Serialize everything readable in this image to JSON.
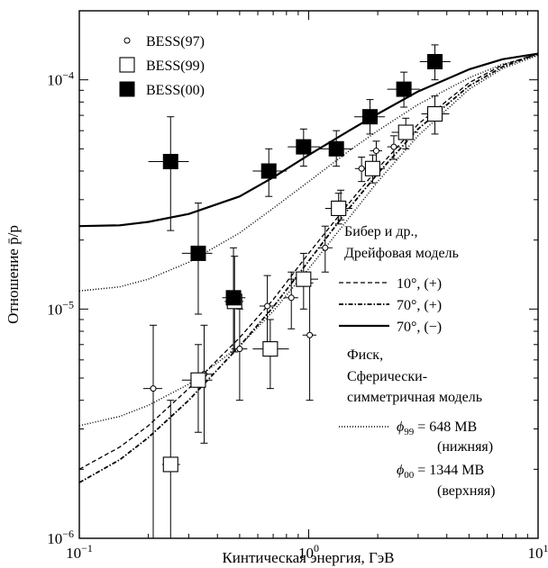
{
  "chart_data": {
    "type": "scatter",
    "title": "",
    "xlabel": "Кинтическая энергия, ГэВ",
    "ylabel": "Отношение p̄/p",
    "x_scale": "log",
    "y_scale": "log",
    "xlim": [
      0.1,
      10
    ],
    "ylim": [
      1e-06,
      0.0002
    ],
    "grid": false,
    "x_ticks": [
      {
        "value": 0.1,
        "base": "10",
        "exp": "−1"
      },
      {
        "value": 1,
        "base": "10",
        "exp": "0"
      },
      {
        "value": 10,
        "base": "10",
        "exp": "1"
      }
    ],
    "y_ticks": [
      {
        "value": 1e-06,
        "base": "10",
        "exp": "−6"
      },
      {
        "value": 1e-05,
        "base": "10",
        "exp": "−5"
      },
      {
        "value": 0.0001,
        "base": "10",
        "exp": "−4"
      }
    ],
    "series": [
      {
        "name": "BESS(97)",
        "marker": "open-circle",
        "points": [
          {
            "x": 0.21,
            "y": 4.5e-06,
            "xlo": 0.19,
            "xhi": 0.23,
            "ylo": 1e-06,
            "yhi": 8.5e-06
          },
          {
            "x": 0.35,
            "y": 5.2e-06,
            "xlo": 0.32,
            "xhi": 0.38,
            "ylo": 2.6e-06,
            "yhi": 8.5e-06
          },
          {
            "x": 0.5,
            "y": 6.7e-06,
            "xlo": 0.46,
            "xhi": 0.54,
            "ylo": 4e-06,
            "yhi": 1e-05
          },
          {
            "x": 0.66,
            "y": 1.03e-05,
            "xlo": 0.61,
            "xhi": 0.71,
            "ylo": 7.2e-06,
            "yhi": 1.4e-05
          },
          {
            "x": 0.84,
            "y": 1.12e-05,
            "xlo": 0.78,
            "xhi": 0.9,
            "ylo": 8.2e-06,
            "yhi": 1.45e-05
          },
          {
            "x": 1.01,
            "y": 7.7e-06,
            "xlo": 0.94,
            "xhi": 1.08,
            "ylo": 4e-06,
            "yhi": 1.3e-05
          },
          {
            "x": 1.18,
            "y": 1.85e-05,
            "xlo": 1.1,
            "xhi": 1.27,
            "ylo": 1.45e-05,
            "yhi": 2.3e-05
          },
          {
            "x": 1.38,
            "y": 2.85e-05,
            "xlo": 1.28,
            "xhi": 1.48,
            "ylo": 2.45e-05,
            "yhi": 3.3e-05
          },
          {
            "x": 1.7,
            "y": 4.1e-05,
            "xlo": 1.59,
            "xhi": 1.81,
            "ylo": 3.6e-05,
            "yhi": 4.6e-05
          },
          {
            "x": 1.97,
            "y": 4.9e-05,
            "xlo": 1.85,
            "xhi": 2.09,
            "ylo": 4.4e-05,
            "yhi": 5.4e-05
          },
          {
            "x": 2.35,
            "y": 5.1e-05,
            "xlo": 2.2,
            "xhi": 2.5,
            "ylo": 4.5e-05,
            "yhi": 5.7e-05
          }
        ]
      },
      {
        "name": "BESS(99)",
        "marker": "open-square",
        "points": [
          {
            "x": 0.25,
            "y": 2.1e-06,
            "xlo": 0.23,
            "xhi": 0.275,
            "ylo": 1e-06,
            "yhi": 4e-06
          },
          {
            "x": 0.33,
            "y": 4.9e-06,
            "xlo": 0.28,
            "xhi": 0.38,
            "ylo": 2.9e-06,
            "yhi": 7e-06
          },
          {
            "x": 0.475,
            "y": 1.08e-05,
            "xlo": 0.43,
            "xhi": 0.52,
            "ylo": 6.5e-06,
            "yhi": 1.7e-05
          },
          {
            "x": 0.68,
            "y": 6.7e-06,
            "xlo": 0.57,
            "xhi": 0.82,
            "ylo": 4.5e-06,
            "yhi": 9e-06
          },
          {
            "x": 0.95,
            "y": 1.35e-05,
            "xlo": 0.82,
            "xhi": 1.1,
            "ylo": 1e-05,
            "yhi": 1.75e-05
          },
          {
            "x": 1.35,
            "y": 2.75e-05,
            "xlo": 1.18,
            "xhi": 1.55,
            "ylo": 2.35e-05,
            "yhi": 3.2e-05
          },
          {
            "x": 1.9,
            "y": 4.1e-05,
            "xlo": 1.68,
            "xhi": 2.15,
            "ylo": 3.55e-05,
            "yhi": 4.7e-05
          },
          {
            "x": 2.65,
            "y": 5.9e-05,
            "xlo": 2.3,
            "xhi": 3.0,
            "ylo": 5e-05,
            "yhi": 6.8e-05
          },
          {
            "x": 3.55,
            "y": 7.1e-05,
            "xlo": 3.1,
            "xhi": 4.1,
            "ylo": 5.8e-05,
            "yhi": 8.5e-05
          }
        ]
      },
      {
        "name": "BESS(00)",
        "marker": "filled-square",
        "points": [
          {
            "x": 0.25,
            "y": 4.4e-05,
            "xlo": 0.2,
            "xhi": 0.3,
            "ylo": 2.2e-05,
            "yhi": 6.9e-05
          },
          {
            "x": 0.33,
            "y": 1.75e-05,
            "xlo": 0.28,
            "xhi": 0.38,
            "ylo": 9.5e-06,
            "yhi": 2.9e-05
          },
          {
            "x": 0.47,
            "y": 1.12e-05,
            "xlo": 0.42,
            "xhi": 0.53,
            "ylo": 6.5e-06,
            "yhi": 1.85e-05
          },
          {
            "x": 0.67,
            "y": 4e-05,
            "xlo": 0.57,
            "xhi": 0.8,
            "ylo": 3.1e-05,
            "yhi": 5e-05
          },
          {
            "x": 0.95,
            "y": 5.1e-05,
            "xlo": 0.81,
            "xhi": 1.12,
            "ylo": 4.2e-05,
            "yhi": 6.1e-05
          },
          {
            "x": 1.32,
            "y": 5e-05,
            "xlo": 1.12,
            "xhi": 1.55,
            "ylo": 4.2e-05,
            "yhi": 6e-05
          },
          {
            "x": 1.85,
            "y": 6.9e-05,
            "xlo": 1.58,
            "xhi": 2.15,
            "ylo": 5.8e-05,
            "yhi": 8.2e-05
          },
          {
            "x": 2.6,
            "y": 9.1e-05,
            "xlo": 2.2,
            "xhi": 3.05,
            "ylo": 7.6e-05,
            "yhi": 0.000108
          },
          {
            "x": 3.55,
            "y": 0.00012,
            "xlo": 3.05,
            "xhi": 4.15,
            "ylo": 0.0001,
            "yhi": 0.000142
          }
        ]
      }
    ],
    "curves": [
      {
        "style": "dashed",
        "points": [
          [
            0.1,
            2e-06
          ],
          [
            0.15,
            2.5e-06
          ],
          [
            0.2,
            3.1e-06
          ],
          [
            0.3,
            4.5e-06
          ],
          [
            0.5,
            7.5e-06
          ],
          [
            0.7,
            1.1e-05
          ],
          [
            1.0,
            1.75e-05
          ],
          [
            1.5,
            2.9e-05
          ],
          [
            2.0,
            4.1e-05
          ],
          [
            3.0,
            6.4e-05
          ],
          [
            5.0,
            9.7e-05
          ],
          [
            7.0,
            0.000116
          ],
          [
            10.0,
            0.00013
          ]
        ]
      },
      {
        "style": "dash-dot",
        "points": [
          [
            0.1,
            1.75e-06
          ],
          [
            0.15,
            2.2e-06
          ],
          [
            0.2,
            2.75e-06
          ],
          [
            0.3,
            4e-06
          ],
          [
            0.5,
            6.9e-06
          ],
          [
            0.7,
            1.02e-05
          ],
          [
            1.0,
            1.62e-05
          ],
          [
            1.5,
            2.75e-05
          ],
          [
            2.0,
            3.9e-05
          ],
          [
            3.0,
            6.1e-05
          ],
          [
            5.0,
            9.4e-05
          ],
          [
            7.0,
            0.000114
          ],
          [
            10.0,
            0.00013
          ]
        ]
      },
      {
        "style": "solid",
        "points": [
          [
            0.1,
            2.3e-05
          ],
          [
            0.15,
            2.32e-05
          ],
          [
            0.2,
            2.4e-05
          ],
          [
            0.3,
            2.6e-05
          ],
          [
            0.5,
            3.1e-05
          ],
          [
            0.7,
            3.75e-05
          ],
          [
            1.0,
            4.7e-05
          ],
          [
            1.5,
            6e-05
          ],
          [
            2.0,
            7.1e-05
          ],
          [
            3.0,
            8.9e-05
          ],
          [
            5.0,
            0.000111
          ],
          [
            7.0,
            0.000123
          ],
          [
            10.0,
            0.00013
          ]
        ]
      },
      {
        "style": "dotted",
        "points": [
          [
            0.1,
            3.1e-06
          ],
          [
            0.15,
            3.4e-06
          ],
          [
            0.2,
            3.8e-06
          ],
          [
            0.3,
            4.7e-06
          ],
          [
            0.5,
            6.9e-06
          ],
          [
            0.7,
            9.8e-06
          ],
          [
            1.0,
            1.5e-05
          ],
          [
            1.5,
            2.5e-05
          ],
          [
            2.0,
            3.6e-05
          ],
          [
            3.0,
            5.7e-05
          ],
          [
            5.0,
            9.1e-05
          ],
          [
            7.0,
            0.000112
          ],
          [
            10.0,
            0.000128
          ]
        ]
      },
      {
        "style": "dotted",
        "points": [
          [
            0.1,
            1.2e-05
          ],
          [
            0.15,
            1.25e-05
          ],
          [
            0.2,
            1.35e-05
          ],
          [
            0.3,
            1.6e-05
          ],
          [
            0.5,
            2.15e-05
          ],
          [
            0.7,
            2.75e-05
          ],
          [
            1.0,
            3.6e-05
          ],
          [
            1.5,
            4.9e-05
          ],
          [
            2.0,
            6e-05
          ],
          [
            3.0,
            7.8e-05
          ],
          [
            5.0,
            0.000102
          ],
          [
            7.0,
            0.000117
          ],
          [
            10.0,
            0.000128
          ]
        ]
      }
    ]
  },
  "legend_markers": [
    {
      "label": "BESS(97)",
      "marker": "open-circle"
    },
    {
      "label": "BESS(99)",
      "marker": "open-square"
    },
    {
      "label": "BESS(00)",
      "marker": "filled-square"
    }
  ],
  "model_legend": {
    "drift_heading_1": "Бибер и др.,",
    "drift_heading_2": "Дрейфовая модель",
    "drift_entries": [
      {
        "style": "dashed",
        "label": "10°, (+)"
      },
      {
        "style": "dash-dot",
        "label": "70°, (+)"
      },
      {
        "style": "solid",
        "label": "70°, (−)"
      }
    ],
    "fisk_heading_1": "Фиск,",
    "fisk_heading_2": "Сферически-",
    "fisk_heading_3": "симметричная модель",
    "phi99_symbol": "ϕ",
    "phi99_sub": "99",
    "phi99_value": "= 648 МВ",
    "phi99_note": "(нижняя)",
    "phi00_symbol": "ϕ",
    "phi00_sub": "00",
    "phi00_value": "= 1344 МВ",
    "phi00_note": "(верхняя)"
  }
}
